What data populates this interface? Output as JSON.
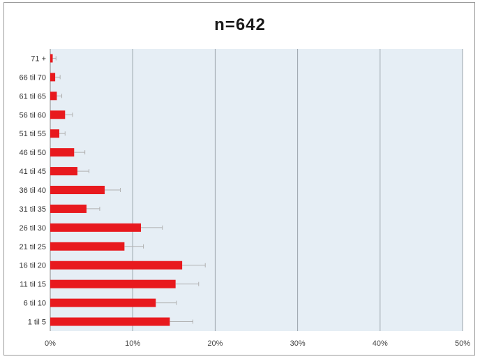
{
  "chart_data": {
    "type": "bar",
    "orientation": "horizontal",
    "title": "n=642",
    "xlabel": "",
    "ylabel": "",
    "xlim": [
      0,
      50
    ],
    "x_ticks": [
      0,
      10,
      20,
      30,
      40,
      50
    ],
    "x_tick_labels": [
      "0%",
      "10%",
      "20%",
      "30%",
      "40%",
      "50%"
    ],
    "grid": "vertical",
    "categories": [
      "71 +",
      "66 til 70",
      "61 til 65",
      "56 til 60",
      "51 til 55",
      "46 til 50",
      "41 til 45",
      "36 til 40",
      "31 til 35",
      "26 til 30",
      "21 til 25",
      "16 til 20",
      "11 til 15",
      "6 til 10",
      "1 til 5"
    ],
    "values": [
      0.3,
      0.6,
      0.8,
      1.8,
      1.1,
      2.9,
      3.3,
      6.6,
      4.4,
      11.0,
      9.0,
      16.0,
      15.2,
      12.8,
      14.5
    ],
    "error_upper": [
      0.7,
      1.2,
      1.4,
      2.7,
      1.8,
      4.2,
      4.7,
      8.5,
      6.0,
      13.6,
      11.3,
      18.8,
      18.0,
      15.3,
      17.3
    ],
    "bar_color": "#e8191e",
    "plot_background": "#e6eef5"
  }
}
